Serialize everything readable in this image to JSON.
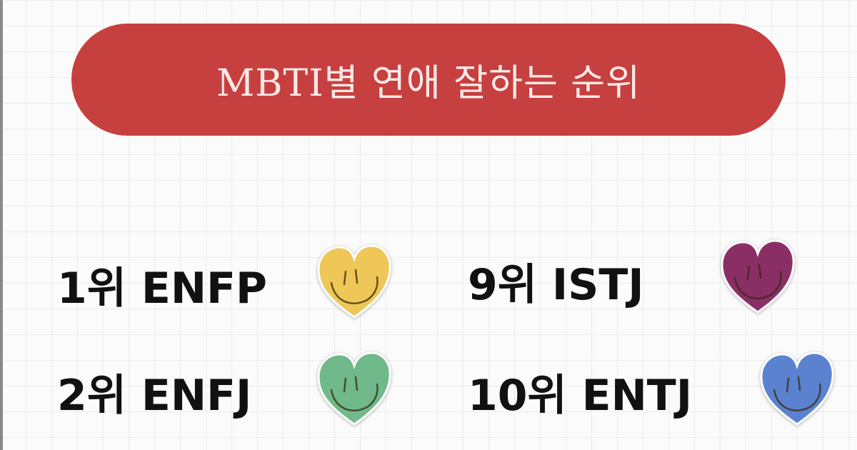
{
  "title": "MBTI별 연애 잘하는 순위",
  "ranks": [
    {
      "label": "1위 ENFP",
      "heart_color": "#eec757",
      "icon": "smiley-heart-icon"
    },
    {
      "label": "9위 ISTJ",
      "heart_color": "#8a2f66",
      "icon": "smiley-heart-icon"
    },
    {
      "label": "2위 ENFJ",
      "heart_color": "#6fb98a",
      "icon": "smiley-heart-icon"
    },
    {
      "label": "10위 ENTJ",
      "heart_color": "#5a82cf",
      "icon": "smiley-heart-icon"
    }
  ],
  "accent": "#c6403f"
}
